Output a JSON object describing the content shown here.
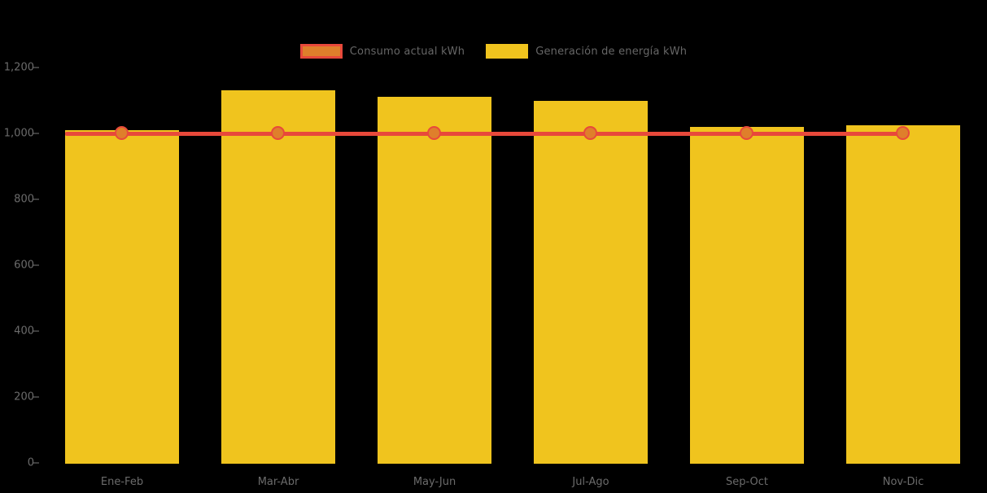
{
  "chart_data": {
    "type": "bar",
    "title": "",
    "categories": [
      "Ene-Feb",
      "Mar-Abr",
      "May-Jun",
      "Jul-Ago",
      "Sep-Oct",
      "Nov-Dic"
    ],
    "series": [
      {
        "name": "Consumo actual kWh",
        "type": "line",
        "values": [
          1000,
          1000,
          1000,
          1000,
          1000,
          1000
        ],
        "line_color": "#e8493b",
        "marker_fill": "#df7f2b",
        "marker_stroke": "#e8493b"
      },
      {
        "name": "Generación de energía kWh",
        "type": "bar",
        "values": [
          1010,
          1130,
          1110,
          1100,
          1020,
          1025
        ],
        "color": "#f0c41e"
      }
    ],
    "xlabel": "",
    "ylabel": "",
    "ylim": [
      0,
      1200
    ],
    "y_tick_labels": [
      "0",
      "200",
      "400",
      "600",
      "800",
      "1,000",
      "1,200"
    ],
    "y_tick_values": [
      0,
      200,
      400,
      600,
      800,
      1000,
      1200
    ],
    "grid": false,
    "legend_position": "top-center",
    "background_color": "#000000",
    "axis_text_color": "#6b6b6b"
  }
}
